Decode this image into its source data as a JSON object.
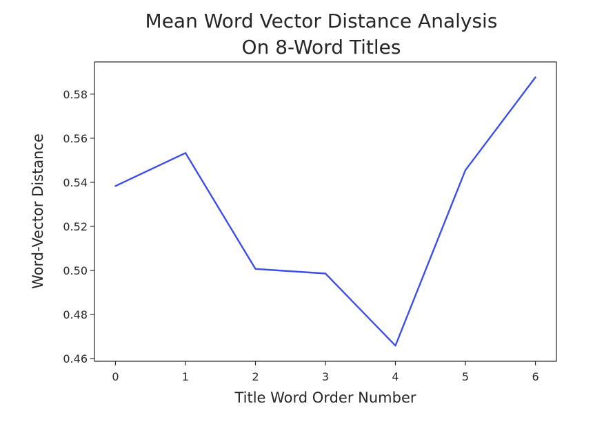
{
  "chart_data": {
    "type": "line",
    "title": "Mean Word Vector Distance Analysis",
    "subtitle": "On 8-Word Titles",
    "xlabel": "Title Word Order Number",
    "ylabel": "Word-Vector Distance",
    "x": [
      0,
      1,
      2,
      3,
      4,
      5,
      6
    ],
    "series": [
      {
        "values": [
          0.5383,
          0.5533,
          0.5007,
          0.4986,
          0.4659,
          0.5455,
          0.5876
        ],
        "color": "#3b4ee8"
      }
    ],
    "xticks": [
      0,
      1,
      2,
      3,
      4,
      5,
      6
    ],
    "xtick_labels": [
      "0",
      "1",
      "2",
      "3",
      "4",
      "5",
      "6"
    ],
    "yticks": [
      0.46,
      0.48,
      0.5,
      0.52,
      0.54,
      0.56,
      0.58
    ],
    "ytick_labels": [
      "0.46",
      "0.48",
      "0.50",
      "0.52",
      "0.54",
      "0.56",
      "0.58"
    ],
    "xlim": [
      -0.3,
      6.3
    ],
    "ylim": [
      0.4588,
      0.5946
    ],
    "grid": false,
    "legend": "none"
  }
}
